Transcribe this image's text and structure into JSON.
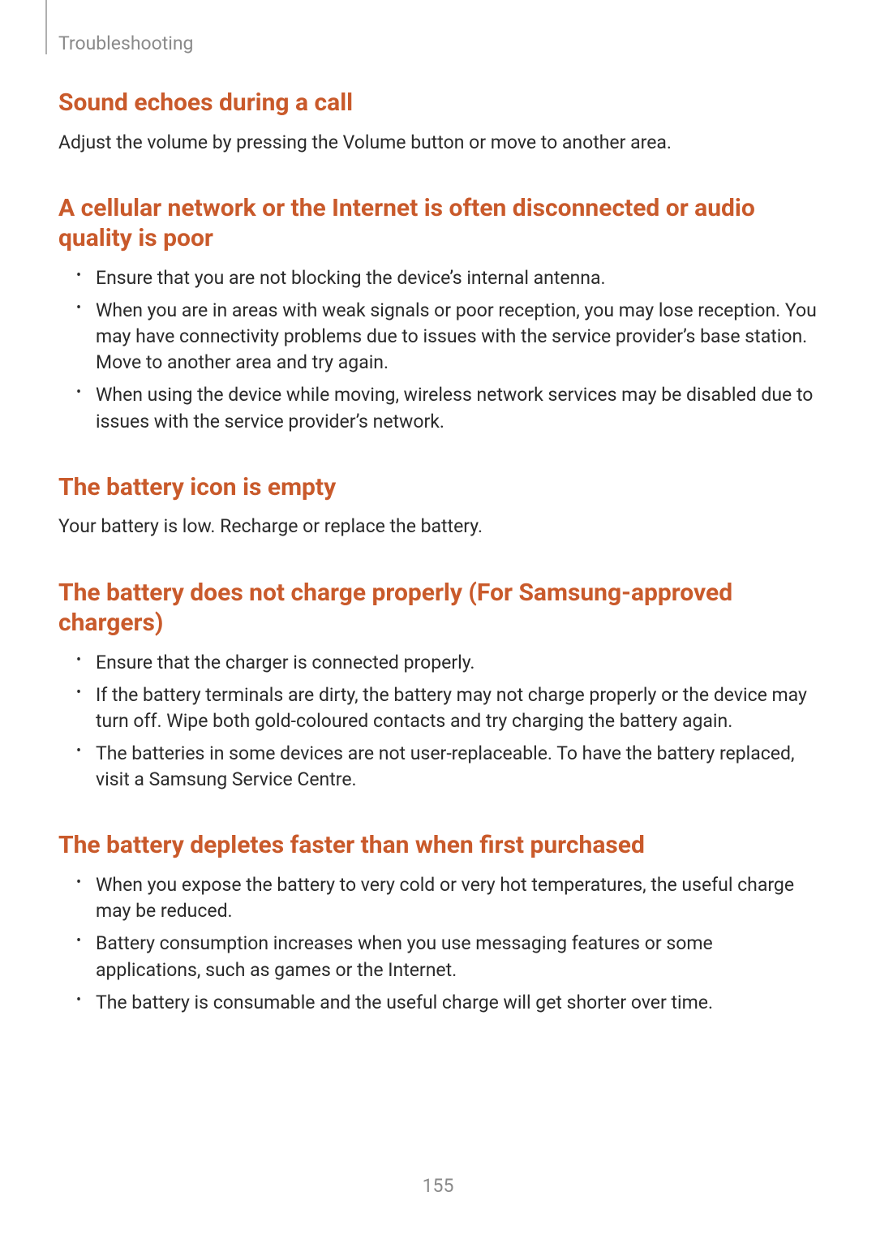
{
  "header": {
    "breadcrumb": "Troubleshooting"
  },
  "colors": {
    "accent": "#c95a2b",
    "body": "#2a2a2a",
    "muted": "#8a8a8a",
    "rule": "#b0b0b0",
    "background": "#ffffff"
  },
  "typography": {
    "section_title_size_pt": 30,
    "body_size_pt": 23,
    "header_size_pt": 23,
    "page_number_size_pt": 23
  },
  "sections": {
    "s1": {
      "title": "Sound echoes during a call",
      "body": "Adjust the volume by pressing the Volume button or move to another area."
    },
    "s2": {
      "title": "A cellular network or the Internet is often disconnected or audio quality is poor",
      "items": [
        "Ensure that you are not blocking the device’s internal antenna.",
        "When you are in areas with weak signals or poor reception, you may lose reception. You may have connectivity problems due to issues with the service provider’s base station. Move to another area and try again.",
        "When using the device while moving, wireless network services may be disabled due to issues with the service provider’s network."
      ]
    },
    "s3": {
      "title": "The battery icon is empty",
      "body": "Your battery is low. Recharge or replace the battery."
    },
    "s4": {
      "title": "The battery does not charge properly (For Samsung-approved chargers)",
      "items": [
        "Ensure that the charger is connected properly.",
        "If the battery terminals are dirty, the battery may not charge properly or the device may turn off. Wipe both gold-coloured contacts and try charging the battery again.",
        "The batteries in some devices are not user-replaceable. To have the battery replaced, visit a Samsung Service Centre."
      ]
    },
    "s5": {
      "title": "The battery depletes faster than when first purchased",
      "items": [
        "When you expose the battery to very cold or very hot temperatures, the useful charge may be reduced.",
        "Battery consumption increases when you use messaging features or some applications, such as games or the Internet.",
        "The battery is consumable and the useful charge will get shorter over time."
      ]
    }
  },
  "page_number": "155"
}
